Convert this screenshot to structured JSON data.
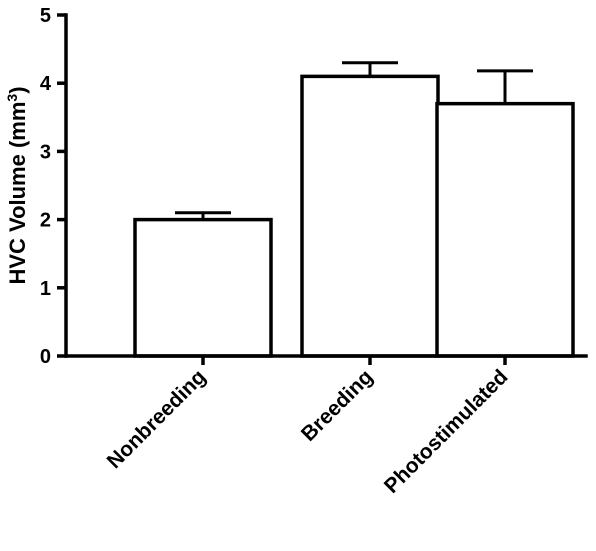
{
  "chart_data": {
    "type": "bar",
    "title": "",
    "xlabel": "",
    "ylabel": "HVC Volume (mm3)",
    "ylabel_parts": {
      "main": "HVC Volume (mm",
      "superscript": "3",
      "suffix": ")"
    },
    "categories": [
      "Nonbreeding",
      "Breeding",
      "Photostimulated"
    ],
    "values": [
      2.0,
      4.1,
      3.7
    ],
    "error_upper": [
      2.1,
      4.3,
      4.18
    ],
    "ylim": [
      0,
      5
    ],
    "yticks": [
      0,
      1,
      2,
      3,
      4,
      5
    ],
    "grid": false,
    "legend": "none"
  }
}
